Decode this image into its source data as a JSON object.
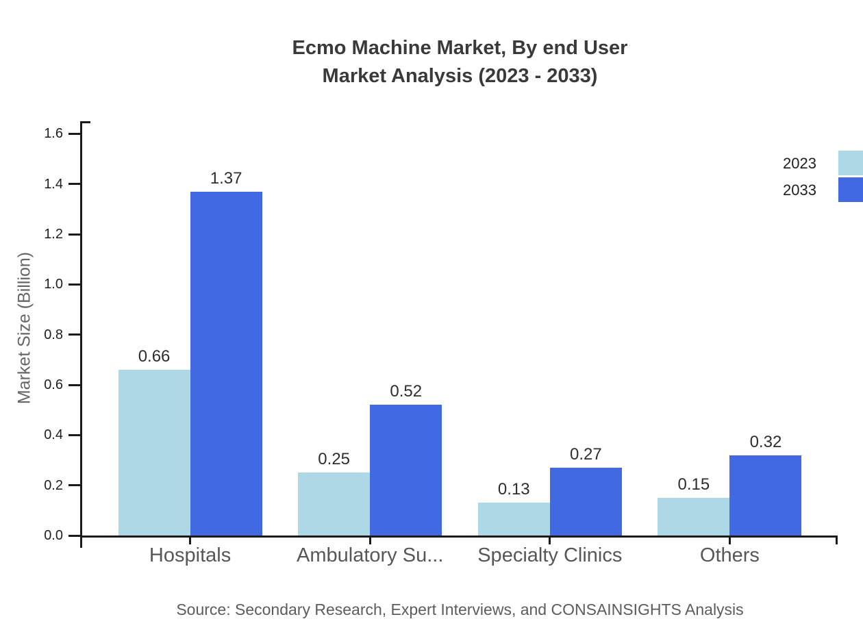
{
  "title": {
    "line1": "Ecmo Machine Market, By end User",
    "line2": "Market Analysis (2023 - 2033)"
  },
  "source": "Source: Secondary Research, Expert Interviews, and CONSAINSIGHTS Analysis",
  "legend": {
    "items": [
      {
        "label": "2023",
        "color": "#ADD8E6"
      },
      {
        "label": "2033",
        "color": "#4169E1"
      }
    ]
  },
  "colors": {
    "series_2023": "#ADD8E6",
    "series_2033": "#4169E1",
    "axis": "#1a1a1a",
    "title_text": "#3a3a3a",
    "category_text": "#575757",
    "source_text": "#5c5c5c"
  },
  "chart_data": {
    "type": "bar",
    "title": "Ecmo Machine Market, By end User Market Analysis (2023 - 2033)",
    "categories": [
      "Hospitals",
      "Ambulatory Su...",
      "Specialty Clinics",
      "Others"
    ],
    "series": [
      {
        "name": "2023",
        "color": "#ADD8E6",
        "values": [
          0.66,
          0.25,
          0.13,
          0.15
        ]
      },
      {
        "name": "2033",
        "color": "#4169E1",
        "values": [
          1.37,
          0.52,
          0.27,
          0.32
        ]
      }
    ],
    "xlabel": "",
    "ylabel": "Market Size (Billion)",
    "ylim": [
      0,
      1.65
    ],
    "xlim": [
      -0.6,
      3.6
    ],
    "yticks": [
      "0.0",
      "0.2",
      "0.4",
      "0.6",
      "0.8",
      "1.0",
      "1.2",
      "1.4",
      "1.6"
    ],
    "bar_width_units": 0.4,
    "grid": false,
    "value_labels": true,
    "legend_position": "top-right"
  }
}
